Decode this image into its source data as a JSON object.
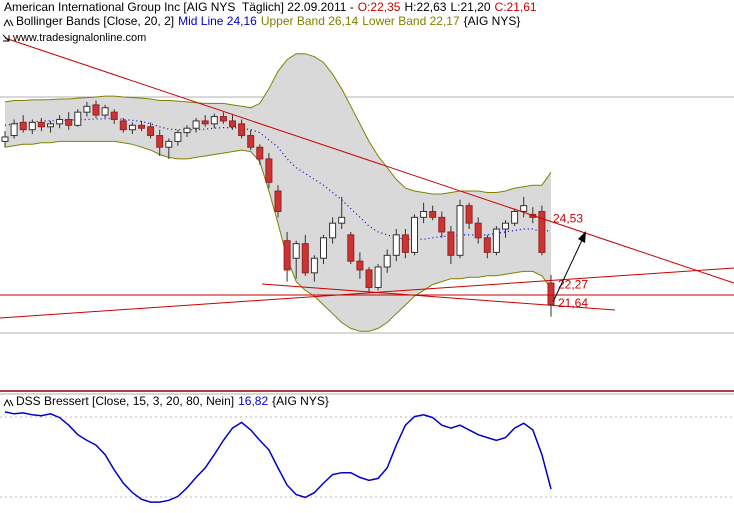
{
  "chart_data": [
    {
      "type": "candlestick",
      "title": "American International Group Inc [AIG NYS  Täglich] 22.09.2011 -",
      "ohlc_labels": [
        "O:22,35",
        "H:22,63",
        "L:21,20",
        "C:21,61"
      ],
      "watermark": "www.tradesignalonline.com",
      "ylim": [
        18.69,
        31.56
      ],
      "up_color": "#ffffff",
      "down_color": "#cc3333",
      "open": [
        27.2,
        27.4,
        27.85,
        27.6,
        27.85,
        27.7,
        27.8,
        27.95,
        27.75,
        28.2,
        28.45,
        28.1,
        28.2,
        27.9,
        27.6,
        27.75,
        27.7,
        27.4,
        27.0,
        27.2,
        27.5,
        27.65,
        27.9,
        27.8,
        28.05,
        27.9,
        27.8,
        27.4,
        27.0,
        26.6,
        25.5,
        23.8,
        23.2,
        23.7,
        22.7,
        23.2,
        23.9,
        24.4,
        24.0,
        23.1,
        22.8,
        22.2,
        22.9,
        23.3,
        24.0,
        23.4,
        24.6,
        24.8,
        24.6,
        24.1,
        23.3,
        25.0,
        24.4,
        23.9,
        23.4,
        24.2,
        24.4,
        24.8,
        24.7,
        24.8,
        22.35
      ],
      "high": [
        27.55,
        27.95,
        28.1,
        27.95,
        28.0,
        27.9,
        28.1,
        28.2,
        28.3,
        28.55,
        28.6,
        28.45,
        28.3,
        28.0,
        27.85,
        27.9,
        27.85,
        27.6,
        27.3,
        27.6,
        27.75,
        28.0,
        28.1,
        28.15,
        28.2,
        28.1,
        27.95,
        27.6,
        27.1,
        26.8,
        25.7,
        24.1,
        23.8,
        24.0,
        23.3,
        24.0,
        24.6,
        25.3,
        24.1,
        23.4,
        22.9,
        23.0,
        23.5,
        24.2,
        24.2,
        24.7,
        25.1,
        25.0,
        24.8,
        24.3,
        25.2,
        25.1,
        24.6,
        24.0,
        24.3,
        24.5,
        24.9,
        25.3,
        24.95,
        25.0,
        22.63
      ],
      "low": [
        27.0,
        27.3,
        27.5,
        27.45,
        27.55,
        27.5,
        27.65,
        27.6,
        27.7,
        28.05,
        28.0,
        28.0,
        27.8,
        27.5,
        27.45,
        27.55,
        27.3,
        26.7,
        26.6,
        27.05,
        27.35,
        27.5,
        27.7,
        27.65,
        27.8,
        27.6,
        27.3,
        26.9,
        26.4,
        25.6,
        24.6,
        22.4,
        22.5,
        22.6,
        22.4,
        23.0,
        23.7,
        24.2,
        23.0,
        22.5,
        22.0,
        22.1,
        22.7,
        23.1,
        23.2,
        23.3,
        24.4,
        24.5,
        23.9,
        23.0,
        23.2,
        24.2,
        23.7,
        23.2,
        23.3,
        23.9,
        24.3,
        24.6,
        24.4,
        23.3,
        21.2
      ],
      "close": [
        27.35,
        27.8,
        27.6,
        27.85,
        27.7,
        27.8,
        27.95,
        27.75,
        28.2,
        28.4,
        28.1,
        28.35,
        27.95,
        27.6,
        27.75,
        27.65,
        27.4,
        27.0,
        27.2,
        27.5,
        27.65,
        27.9,
        27.8,
        28.05,
        27.9,
        27.7,
        27.4,
        27.0,
        26.6,
        25.8,
        24.8,
        22.8,
        23.7,
        22.7,
        23.2,
        23.9,
        24.4,
        24.6,
        23.1,
        22.8,
        22.2,
        22.9,
        23.3,
        24.0,
        23.4,
        24.6,
        24.8,
        24.6,
        24.1,
        23.3,
        25.0,
        24.4,
        23.9,
        23.4,
        24.2,
        24.4,
        24.8,
        25.0,
        24.6,
        23.4,
        21.61
      ],
      "indicator": {
        "label": "Bollinger Bands [Close, 20, 2]",
        "mid_label": "Mid Line 24,16",
        "upper_label": "Upper Band 26,14",
        "lower_label": "Lower Band 22,17",
        "symbol": "{AIG NYS}",
        "mid_color": "#0000cc",
        "band_color": "#808000",
        "fill": "#d9d9d9",
        "upper": [
          28.55,
          28.6,
          28.6,
          28.62,
          28.62,
          28.63,
          28.65,
          28.65,
          28.68,
          28.7,
          28.72,
          28.75,
          28.75,
          28.72,
          28.7,
          28.68,
          28.65,
          28.6,
          28.6,
          28.58,
          28.55,
          28.52,
          28.5,
          28.5,
          28.5,
          28.45,
          28.4,
          28.35,
          28.5,
          29.0,
          29.6,
          30.0,
          30.2,
          30.2,
          30.1,
          29.9,
          29.5,
          29.0,
          28.4,
          27.8,
          27.2,
          26.7,
          26.3,
          25.9,
          25.6,
          25.5,
          25.45,
          25.4,
          25.4,
          25.45,
          25.5,
          25.5,
          25.5,
          25.45,
          25.45,
          25.5,
          25.6,
          25.65,
          25.7,
          25.7,
          26.14
        ],
        "mid": [
          27.75,
          27.8,
          27.85,
          27.85,
          27.9,
          27.9,
          27.92,
          27.92,
          27.95,
          27.95,
          27.97,
          27.97,
          28.0,
          27.95,
          27.92,
          27.88,
          27.8,
          27.7,
          27.62,
          27.6,
          27.6,
          27.6,
          27.62,
          27.65,
          27.67,
          27.67,
          27.65,
          27.6,
          27.5,
          27.25,
          27.0,
          26.6,
          26.3,
          26.1,
          25.9,
          25.7,
          25.45,
          25.2,
          24.9,
          24.6,
          24.3,
          24.1,
          24.0,
          23.9,
          23.85,
          23.85,
          23.85,
          23.9,
          23.95,
          23.95,
          24.0,
          24.0,
          24.0,
          24.0,
          24.05,
          24.1,
          24.15,
          24.2,
          24.2,
          24.1,
          24.16
        ],
        "lower": [
          27.0,
          27.05,
          27.1,
          27.1,
          27.15,
          27.15,
          27.2,
          27.2,
          27.2,
          27.2,
          27.2,
          27.2,
          27.2,
          27.15,
          27.1,
          27.0,
          26.9,
          26.75,
          26.65,
          26.6,
          26.6,
          26.65,
          26.7,
          26.75,
          26.8,
          26.85,
          26.9,
          26.85,
          26.5,
          25.5,
          24.4,
          23.2,
          22.4,
          22.1,
          21.9,
          21.6,
          21.3,
          21.0,
          20.8,
          20.7,
          20.7,
          20.8,
          21.0,
          21.3,
          21.6,
          21.9,
          22.1,
          22.3,
          22.4,
          22.5,
          22.5,
          22.55,
          22.55,
          22.6,
          22.6,
          22.65,
          22.7,
          22.75,
          22.75,
          22.6,
          22.17
        ]
      },
      "annotations": [
        {
          "value": 24.53,
          "label": "24,53"
        },
        {
          "value": 22.27,
          "label": "22,27"
        },
        {
          "value": 21.64,
          "label": "21,64"
        }
      ]
    },
    {
      "type": "line",
      "title": "DSS Bressert [Close, 15, 3, 20, 80, Nein]",
      "value_label": "16,82",
      "symbol": "{AIG NYS}",
      "color": "#0000cc",
      "ylim": [
        0,
        100
      ],
      "values": [
        98,
        96,
        97,
        95,
        94,
        96,
        92,
        84,
        74,
        68,
        63,
        53,
        37,
        23,
        13,
        6,
        3,
        3,
        5,
        9,
        18,
        29,
        39,
        53,
        68,
        81,
        87,
        79,
        68,
        58,
        39,
        21,
        11,
        8,
        13,
        23,
        32,
        34,
        34,
        29,
        26,
        28,
        39,
        63,
        84,
        93,
        95,
        92,
        84,
        81,
        84,
        79,
        74,
        71,
        68,
        71,
        81,
        86,
        79,
        53,
        16.82
      ]
    }
  ]
}
